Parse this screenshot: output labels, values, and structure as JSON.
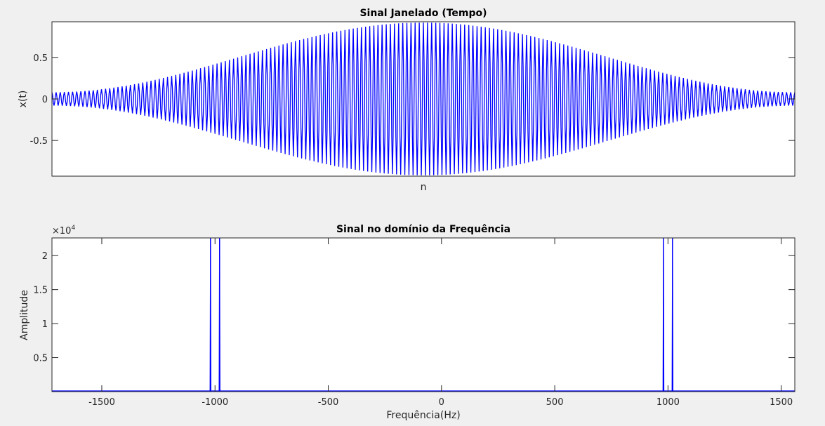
{
  "chart_data": [
    {
      "type": "line",
      "title": "Sinal Janelado (Tempo)",
      "xlabel": "n",
      "ylabel": "x(t)",
      "ylim": [
        -0.93,
        0.93
      ],
      "yticks": [
        -0.5,
        0,
        0.5
      ],
      "ytick_labels": [
        "-0.5",
        "0",
        "0.5"
      ],
      "xticks": [],
      "grid": false,
      "line_color": "#0000ff",
      "signal": {
        "description_values": {
          "carrier_cycles": 180,
          "envelope_min": 0.08,
          "envelope_max": 0.92,
          "envelope": "hann-like"
        }
      }
    },
    {
      "type": "line",
      "title": "Sinal no domínio da Frequência",
      "xlabel": "Frequência(Hz)",
      "ylabel": "Amplitude",
      "xlim": [
        -1720,
        1560
      ],
      "ylim": [
        0,
        22600
      ],
      "exponent_label": "×10",
      "exponent_power": "4",
      "xticks": [
        -1500,
        -1000,
        -500,
        0,
        500,
        1000,
        1500
      ],
      "xtick_labels": [
        "-1500",
        "-1000",
        "-500",
        "0",
        "500",
        "1000",
        "1500"
      ],
      "yticks": [
        5000,
        10000,
        15000,
        20000
      ],
      "ytick_labels": [
        "0.5",
        "1",
        "1.5",
        "2"
      ],
      "grid": false,
      "line_color": "#0000ff",
      "peaks": [
        {
          "x": -1020,
          "y": 22600
        },
        {
          "x": -980,
          "y": 22600
        },
        {
          "x": 980,
          "y": 22600
        },
        {
          "x": 1020,
          "y": 22600
        }
      ]
    }
  ]
}
